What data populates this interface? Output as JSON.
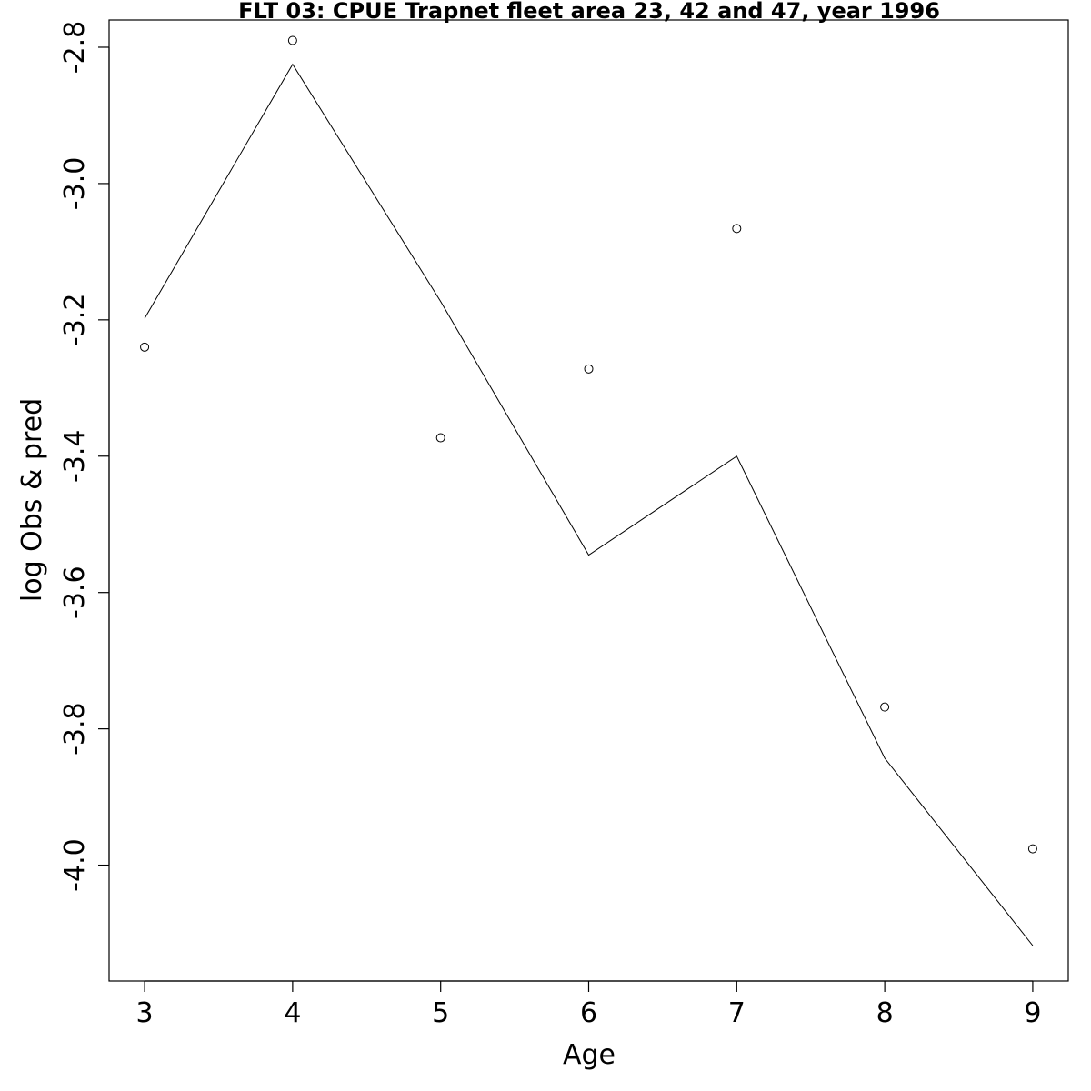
{
  "chart_data": {
    "type": "line",
    "title": "FLT 03: CPUE Trapnet fleet area 23, 42 and 47, year 1996",
    "xlabel": "Age",
    "ylabel": "log Obs & pred",
    "x": [
      3,
      4,
      5,
      6,
      7,
      8,
      9
    ],
    "xlim": [
      2.76,
      9.24
    ],
    "ylim": [
      -4.17,
      -2.76
    ],
    "x_ticks": [
      3,
      4,
      5,
      6,
      7,
      8,
      9
    ],
    "y_ticks": [
      -2.8,
      -3.0,
      -3.2,
      -3.4,
      -3.6,
      -3.8,
      -4.0
    ],
    "y_tick_labels": [
      "-2.8",
      "-3.0",
      "-3.2",
      "-3.4",
      "-3.6",
      "-3.8",
      "-4.0"
    ],
    "series": [
      {
        "role": "observed",
        "style": "points",
        "values": [
          -3.24,
          -2.79,
          -3.373,
          -3.272,
          -3.066,
          -3.768,
          -3.976
        ]
      },
      {
        "role": "predicted",
        "style": "line",
        "values": [
          -3.198,
          -2.825,
          -3.173,
          -3.545,
          -3.4,
          -3.843,
          -4.118
        ]
      }
    ],
    "grid": false,
    "colors": {
      "line": "#000000",
      "points": "#000000",
      "background": "#ffffff"
    }
  }
}
